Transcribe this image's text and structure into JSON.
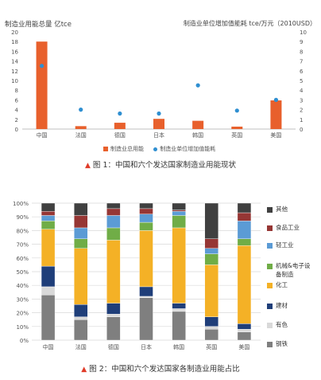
{
  "figure1": {
    "caption_marker": "▲",
    "caption": "图 1：中国和六个发达国家制造业用能现状",
    "left_axis_title": "制造业用能总量 亿tce",
    "right_axis_title": "制造业单位增加值能耗 tce/万元（2010USD）",
    "legend": [
      "制造业总用能",
      "制造业单位增加值能耗"
    ]
  },
  "figure2": {
    "caption_marker": "▲",
    "caption": "图 2：中国和六个发达国家各制造业用能占比"
  },
  "chart_data": [
    {
      "type": "bar",
      "categories": [
        "中国",
        "法国",
        "德国",
        "日本",
        "韩国",
        "英国",
        "美国"
      ],
      "series": [
        {
          "name": "制造业总用能",
          "axis": "left",
          "values": [
            18.0,
            0.6,
            1.3,
            2.1,
            1.7,
            0.5,
            5.9
          ],
          "color": "#e8602c"
        },
        {
          "name": "制造业单位增加值能耗",
          "axis": "right",
          "type": "scatter",
          "values": [
            6.5,
            2.0,
            1.6,
            1.6,
            4.5,
            1.9,
            3.0
          ],
          "color": "#2f8fd1"
        }
      ],
      "ylim_left": [
        0,
        20
      ],
      "yticks_left": [
        0,
        2,
        4,
        6,
        8,
        10,
        12,
        14,
        16,
        18,
        20
      ],
      "ylim_right": [
        0,
        10
      ],
      "yticks_right": [
        0,
        1,
        2,
        3,
        4,
        5,
        6,
        7,
        8,
        9,
        10
      ],
      "xlabel": "",
      "ylabel": "制造业用能总量 亿tce",
      "y2label": "制造业单位增加值能耗 tce/万元（2010USD）",
      "legend_position": "bottom",
      "grid": false
    },
    {
      "type": "bar",
      "stacked": true,
      "normalized": true,
      "categories": [
        "中国",
        "法国",
        "德国",
        "日本",
        "韩国",
        "英国",
        "美国"
      ],
      "series": [
        {
          "name": "钢铁",
          "color": "#7f7f7f",
          "values": [
            33,
            15,
            17,
            31,
            21,
            8,
            6
          ]
        },
        {
          "name": "有色",
          "color": "#d9d9d9",
          "values": [
            6,
            2,
            2,
            1,
            2,
            2,
            2
          ]
        },
        {
          "name": "建材",
          "color": "#1f3e79",
          "values": [
            15,
            9,
            8,
            7,
            4,
            7,
            4
          ]
        },
        {
          "name": "化工",
          "color": "#f4b126",
          "values": [
            27,
            41,
            46,
            41,
            55,
            38,
            57
          ]
        },
        {
          "name": "机械&电子设备制造",
          "color": "#70ad47",
          "values": [
            6,
            7,
            9,
            6,
            9,
            8,
            5
          ]
        },
        {
          "name": "轻工业",
          "color": "#5b9bd5",
          "values": [
            4,
            8,
            9,
            6,
            3,
            4,
            13
          ]
        },
        {
          "name": "食品工业",
          "color": "#963634",
          "values": [
            3,
            9,
            5,
            4,
            1,
            7,
            6
          ]
        },
        {
          "name": "其他",
          "color": "#404040",
          "values": [
            6,
            9,
            4,
            4,
            5,
            26,
            7
          ]
        }
      ],
      "ylim": [
        0,
        100
      ],
      "yticks": [
        "0%",
        "10%",
        "20%",
        "30%",
        "40%",
        "50%",
        "60%",
        "70%",
        "80%",
        "90%",
        "100%"
      ],
      "xlabel": "",
      "ylabel": "",
      "legend_position": "right",
      "grid": true
    }
  ]
}
